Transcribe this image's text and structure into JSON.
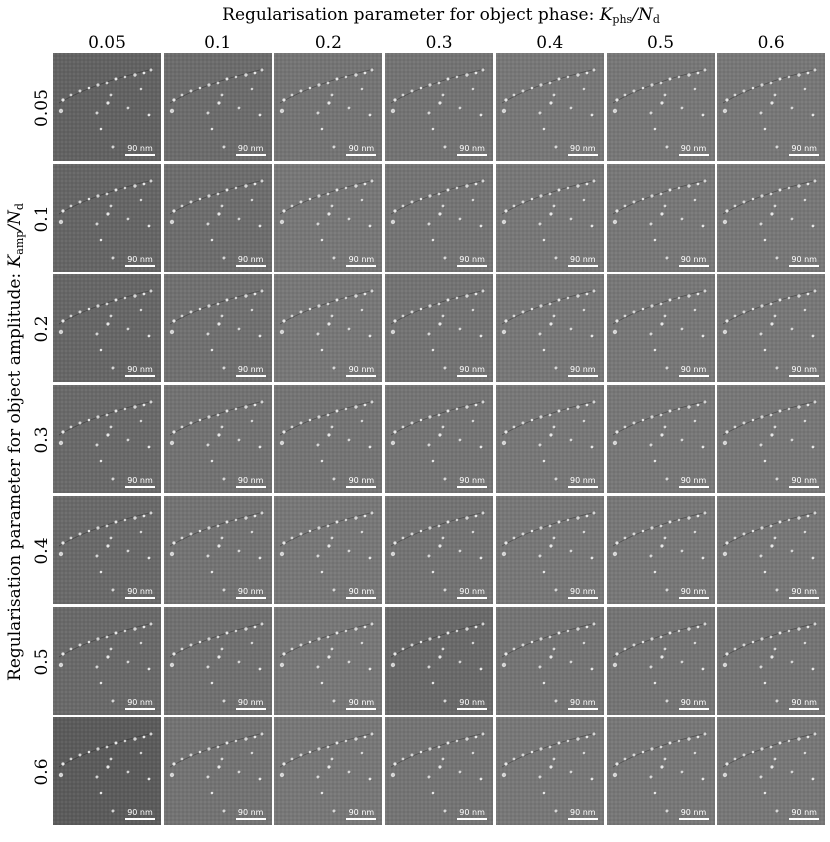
{
  "figure": {
    "title_top_prefix": "Regularisation parameter for object phase: ",
    "title_top_symbol": "K",
    "title_top_symbol_sub": "phs",
    "title_top_slash": "/",
    "title_top_symbol2": "N",
    "title_top_symbol2_sub": "d",
    "title_left_prefix": "Regularisation parameter for object amplitude: ",
    "title_left_symbol": "K",
    "title_left_symbol_sub": "amp",
    "title_left_slash": "/",
    "title_left_symbol2": "N",
    "title_left_symbol2_sub": "d",
    "column_labels": [
      "0.05",
      "0.1",
      "0.2",
      "0.3",
      "0.4",
      "0.5",
      "0.6"
    ],
    "row_labels": [
      "0.05",
      "0.1",
      "0.2",
      "0.3",
      "0.4",
      "0.5",
      "0.6"
    ],
    "scale_bar_label": "90 nm",
    "colors": {
      "tile_gray_dark": "#5a5a5a",
      "tile_gray_mid": "#727272",
      "tile_gray_light": "#858585",
      "feature_bright": "#e8e8e8",
      "feature_dark": "#2a2a2a",
      "separator": "#ffffff"
    },
    "tile_brightness": [
      [
        0.25,
        0.4,
        0.52,
        0.5,
        0.55,
        0.55,
        0.55
      ],
      [
        0.3,
        0.42,
        0.55,
        0.52,
        0.55,
        0.55,
        0.55
      ],
      [
        0.32,
        0.45,
        0.55,
        0.5,
        0.55,
        0.55,
        0.55
      ],
      [
        0.35,
        0.48,
        0.52,
        0.52,
        0.55,
        0.55,
        0.55
      ],
      [
        0.35,
        0.5,
        0.55,
        0.5,
        0.55,
        0.55,
        0.55
      ],
      [
        0.35,
        0.45,
        0.55,
        0.35,
        0.52,
        0.52,
        0.52
      ],
      [
        0.15,
        0.5,
        0.55,
        0.52,
        0.55,
        0.55,
        0.55
      ]
    ]
  }
}
